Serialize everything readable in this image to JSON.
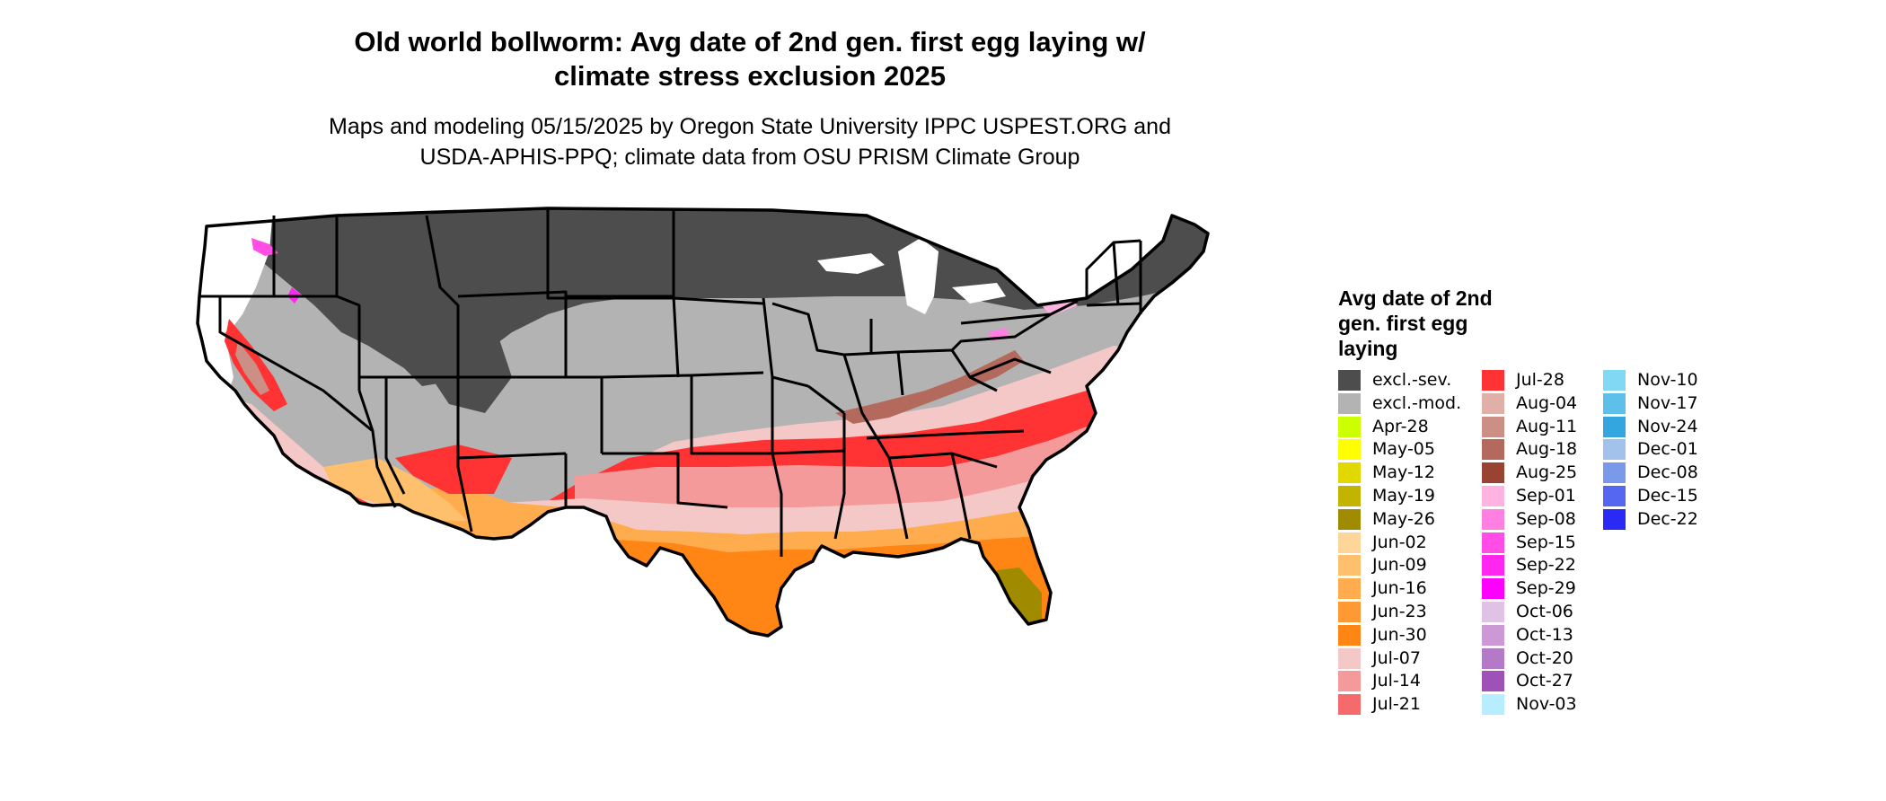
{
  "title_line1": "Old world bollworm: Avg date of 2nd gen. first egg laying w/",
  "title_line2": "climate stress exclusion 2025",
  "subtitle_line1": "Maps and modeling 05/15/2025 by Oregon State University IPPC USPEST.ORG and",
  "subtitle_line2": "USDA-APHIS-PPQ; climate data from OSU PRISM Climate Group",
  "legend": {
    "title_line1": "Avg date of 2nd",
    "title_line2": "gen. first egg",
    "title_line3": "laying",
    "columns": [
      [
        {
          "label": "excl.-sev.",
          "color": "#4d4d4d"
        },
        {
          "label": "excl.-mod.",
          "color": "#b3b3b3"
        },
        {
          "label": "Apr-28",
          "color": "#ccff00"
        },
        {
          "label": "May-05",
          "color": "#ffff00"
        },
        {
          "label": "May-12",
          "color": "#e0d800"
        },
        {
          "label": "May-19",
          "color": "#c2b400"
        },
        {
          "label": "May-26",
          "color": "#a08a00"
        },
        {
          "label": "Jun-02",
          "color": "#ffd699"
        },
        {
          "label": "Jun-09",
          "color": "#ffc06e"
        },
        {
          "label": "Jun-16",
          "color": "#ffac4f"
        },
        {
          "label": "Jun-23",
          "color": "#ff9933"
        },
        {
          "label": "Jun-30",
          "color": "#ff8514"
        },
        {
          "label": "Jul-07",
          "color": "#f5c8c8"
        },
        {
          "label": "Jul-14",
          "color": "#f59a9a"
        },
        {
          "label": "Jul-21",
          "color": "#f56a6a"
        }
      ],
      [
        {
          "label": "Jul-28",
          "color": "#ff3333"
        },
        {
          "label": "Aug-04",
          "color": "#e0b0a8"
        },
        {
          "label": "Aug-11",
          "color": "#cc8f85"
        },
        {
          "label": "Aug-18",
          "color": "#b36a5c"
        },
        {
          "label": "Aug-25",
          "color": "#994433"
        },
        {
          "label": "Sep-01",
          "color": "#ffb3e0"
        },
        {
          "label": "Sep-08",
          "color": "#ff80e0"
        },
        {
          "label": "Sep-15",
          "color": "#ff4de6"
        },
        {
          "label": "Sep-22",
          "color": "#ff26f0"
        },
        {
          "label": "Sep-29",
          "color": "#ff00ff"
        },
        {
          "label": "Oct-06",
          "color": "#e0c2e6"
        },
        {
          "label": "Oct-13",
          "color": "#cc99d6"
        },
        {
          "label": "Oct-20",
          "color": "#b57ac7"
        },
        {
          "label": "Oct-27",
          "color": "#9e52b8"
        },
        {
          "label": "Nov-03",
          "color": "#b8ecff"
        }
      ],
      [
        {
          "label": "Nov-10",
          "color": "#80d8f5"
        },
        {
          "label": "Nov-17",
          "color": "#5cc0eb"
        },
        {
          "label": "Nov-24",
          "color": "#33a6e0"
        },
        {
          "label": "Dec-01",
          "color": "#a3c2eb"
        },
        {
          "label": "Dec-08",
          "color": "#7a99eb"
        },
        {
          "label": "Dec-15",
          "color": "#5566f0"
        },
        {
          "label": "Dec-22",
          "color": "#2a2af5"
        }
      ]
    ]
  }
}
